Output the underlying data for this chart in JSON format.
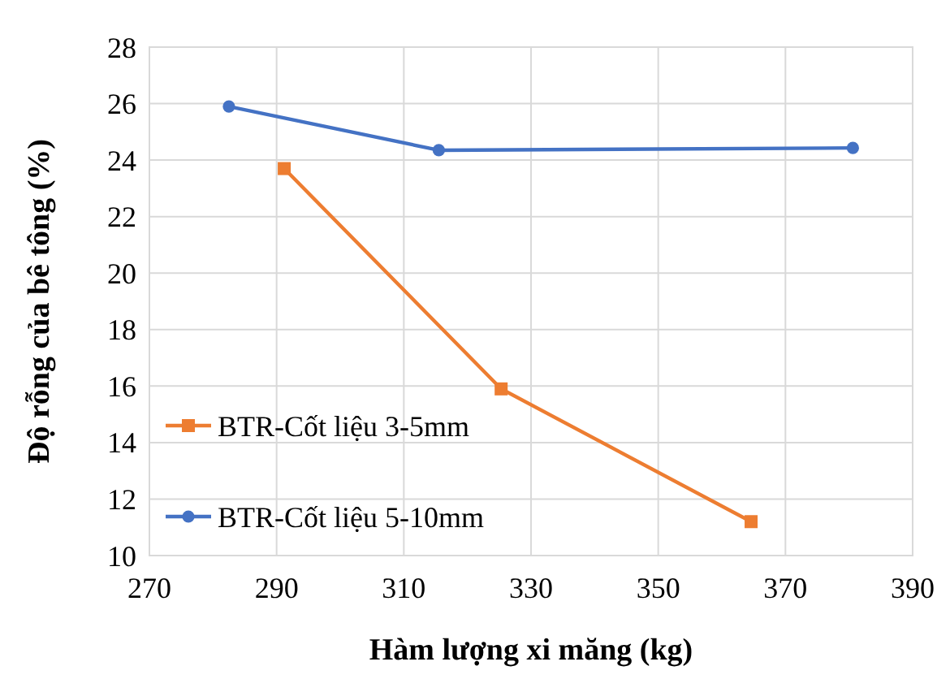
{
  "chart_data": {
    "type": "line",
    "xlabel": "Hàm lượng xi măng (kg)",
    "ylabel": "Độ rỗng của bê tông (%)",
    "xlim": [
      270,
      390
    ],
    "xticks": [
      270,
      290,
      310,
      330,
      350,
      370,
      390
    ],
    "ylim": [
      10,
      28
    ],
    "yticks": [
      10,
      12,
      14,
      16,
      18,
      20,
      22,
      24,
      26,
      28
    ],
    "grid": true,
    "legend": "bottom left",
    "series": [
      {
        "name": "BTR-Cốt liệu 3-5mm",
        "color": "#ed7d31",
        "marker": "square",
        "x": [
          291.2,
          325.3,
          364.6
        ],
        "values": [
          23.7,
          15.9,
          11.2
        ]
      },
      {
        "name": "BTR-Cốt liệu 5-10mm",
        "color": "#4472c4",
        "marker": "circle",
        "x": [
          282.5,
          315.5,
          380.6
        ],
        "values": [
          25.9,
          24.35,
          24.43
        ]
      }
    ]
  }
}
